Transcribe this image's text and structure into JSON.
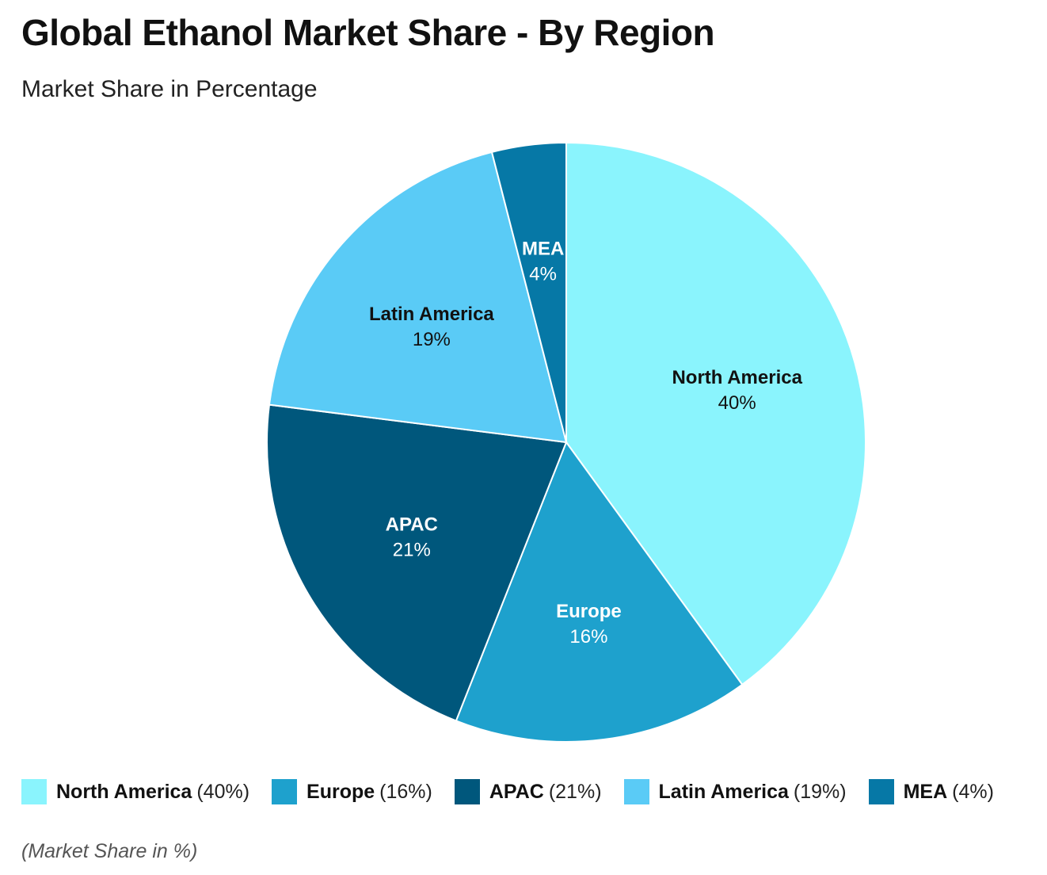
{
  "title": "Global Ethanol Market Share - By Region",
  "subtitle": "Market Share in Percentage",
  "footnote": "(Market Share in %)",
  "chart_data": {
    "type": "pie",
    "title": "Global Ethanol Market Share - By Region",
    "subtitle": "Market Share in Percentage",
    "unit": "%",
    "start_angle_deg": 0,
    "direction": "clockwise",
    "legend_position": "bottom",
    "slices": [
      {
        "name": "North America",
        "value": 40,
        "label": "40%",
        "legend_value": "(40%)",
        "color": "#8af4fd",
        "text_color": "#111111"
      },
      {
        "name": "Europe",
        "value": 16,
        "label": "16%",
        "legend_value": "(16%)",
        "color": "#1ea1cd",
        "text_color": "#ffffff"
      },
      {
        "name": "APAC",
        "value": 21,
        "label": "21%",
        "legend_value": "(21%)",
        "color": "#00577c",
        "text_color": "#ffffff"
      },
      {
        "name": "Latin America",
        "value": 19,
        "label": "19%",
        "legend_value": "(19%)",
        "color": "#5acbf6",
        "text_color": "#111111"
      },
      {
        "name": "MEA",
        "value": 4,
        "label": "4%",
        "legend_value": "(4%)",
        "color": "#0678a6",
        "text_color": "#ffffff"
      }
    ]
  }
}
